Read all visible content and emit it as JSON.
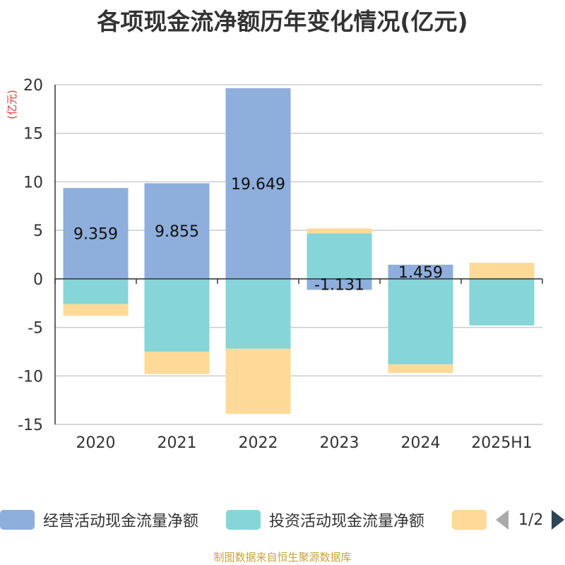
{
  "title": "各项现金流净额历年变化情况(亿元)",
  "source": "制图数据来自恒生聚源数据库",
  "pager": {
    "text": "1/2"
  },
  "colors": {
    "operating": "#8eaedb",
    "investing": "#86d5d8",
    "financing": "#fed998",
    "axis": "#333333",
    "grid": "#cccccc",
    "unit": "#e0353b"
  },
  "chart_data": {
    "type": "bar",
    "stacked": true,
    "ylabel": "(亿元)",
    "ylim": [
      -15,
      20
    ],
    "yticks": [
      20,
      15,
      10,
      5,
      0,
      -5,
      -10,
      -15
    ],
    "categories": [
      "2020",
      "2021",
      "2022",
      "2023",
      "2024",
      "2025H1"
    ],
    "series": [
      {
        "name": "经营活动现金流量净额",
        "color": "#8eaedb",
        "values": [
          9.359,
          9.855,
          19.649,
          -1.131,
          1.459,
          0.05
        ],
        "labels": [
          "9.359",
          "9.855",
          "19.649",
          "-1.131",
          "1.459",
          ""
        ]
      },
      {
        "name": "投资活动现金流量净额",
        "color": "#86d5d8",
        "values": [
          -2.6,
          -7.5,
          -7.2,
          4.7,
          -8.8,
          -4.8
        ],
        "labels": [
          "",
          "",
          "",
          "",
          "",
          ""
        ]
      },
      {
        "name": "",
        "color": "#fed998",
        "values": [
          -1.2,
          -2.3,
          -6.7,
          0.5,
          -0.9,
          1.6
        ],
        "labels": [
          "",
          "",
          "",
          "",
          "",
          ""
        ]
      }
    ],
    "grid": true,
    "legend_position": "bottom"
  }
}
